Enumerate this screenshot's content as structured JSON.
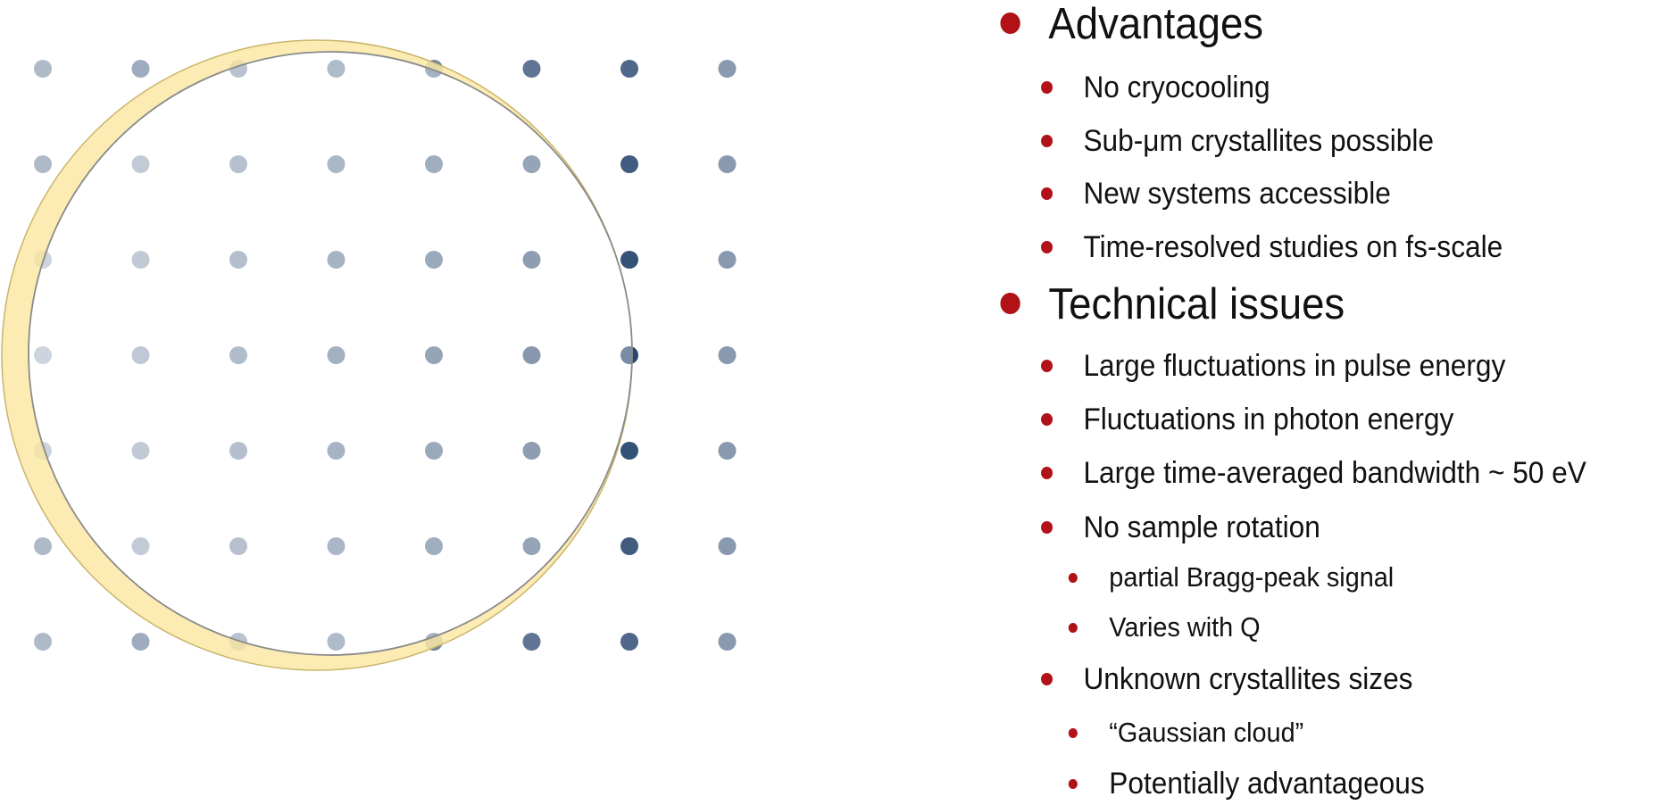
{
  "colors": {
    "bullet": "#b01218",
    "dot_light": "#c3cbd7",
    "dot_dark": "#1d3d66",
    "ewald_fill": "#fbe9a6",
    "ewald_stroke": "#c9b56c",
    "sphere_stroke": "#8a8a8a"
  },
  "diagram": {
    "lattice_columns": 8,
    "lattice_rows": 7,
    "icons": [
      "lattice-points",
      "ewald-sphere-crescent"
    ]
  },
  "bullets": [
    {
      "level": 1,
      "text": "Advantages"
    },
    {
      "level": 2,
      "text": "No cryocooling"
    },
    {
      "level": 2,
      "text": "Sub-μm crystallites possible"
    },
    {
      "level": 2,
      "text": "New systems accessible"
    },
    {
      "level": 2,
      "text": "Time-resolved studies on fs-scale"
    },
    {
      "level": 1,
      "text": "Technical issues"
    },
    {
      "level": 2,
      "text": "Large fluctuations in pulse energy"
    },
    {
      "level": 2,
      "text": "Fluctuations in photon energy"
    },
    {
      "level": 2,
      "text": "Large time-averaged bandwidth ~ 50 eV"
    },
    {
      "level": 2,
      "text": "No sample rotation"
    },
    {
      "level": 3,
      "text": "partial Bragg-peak signal"
    },
    {
      "level": 3,
      "text": "Varies with Q"
    },
    {
      "level": 2,
      "text": "Unknown crystallites sizes"
    },
    {
      "level": 3,
      "text": "“Gaussian cloud”"
    },
    {
      "level": 3,
      "text": "Potentially advantageous"
    }
  ]
}
